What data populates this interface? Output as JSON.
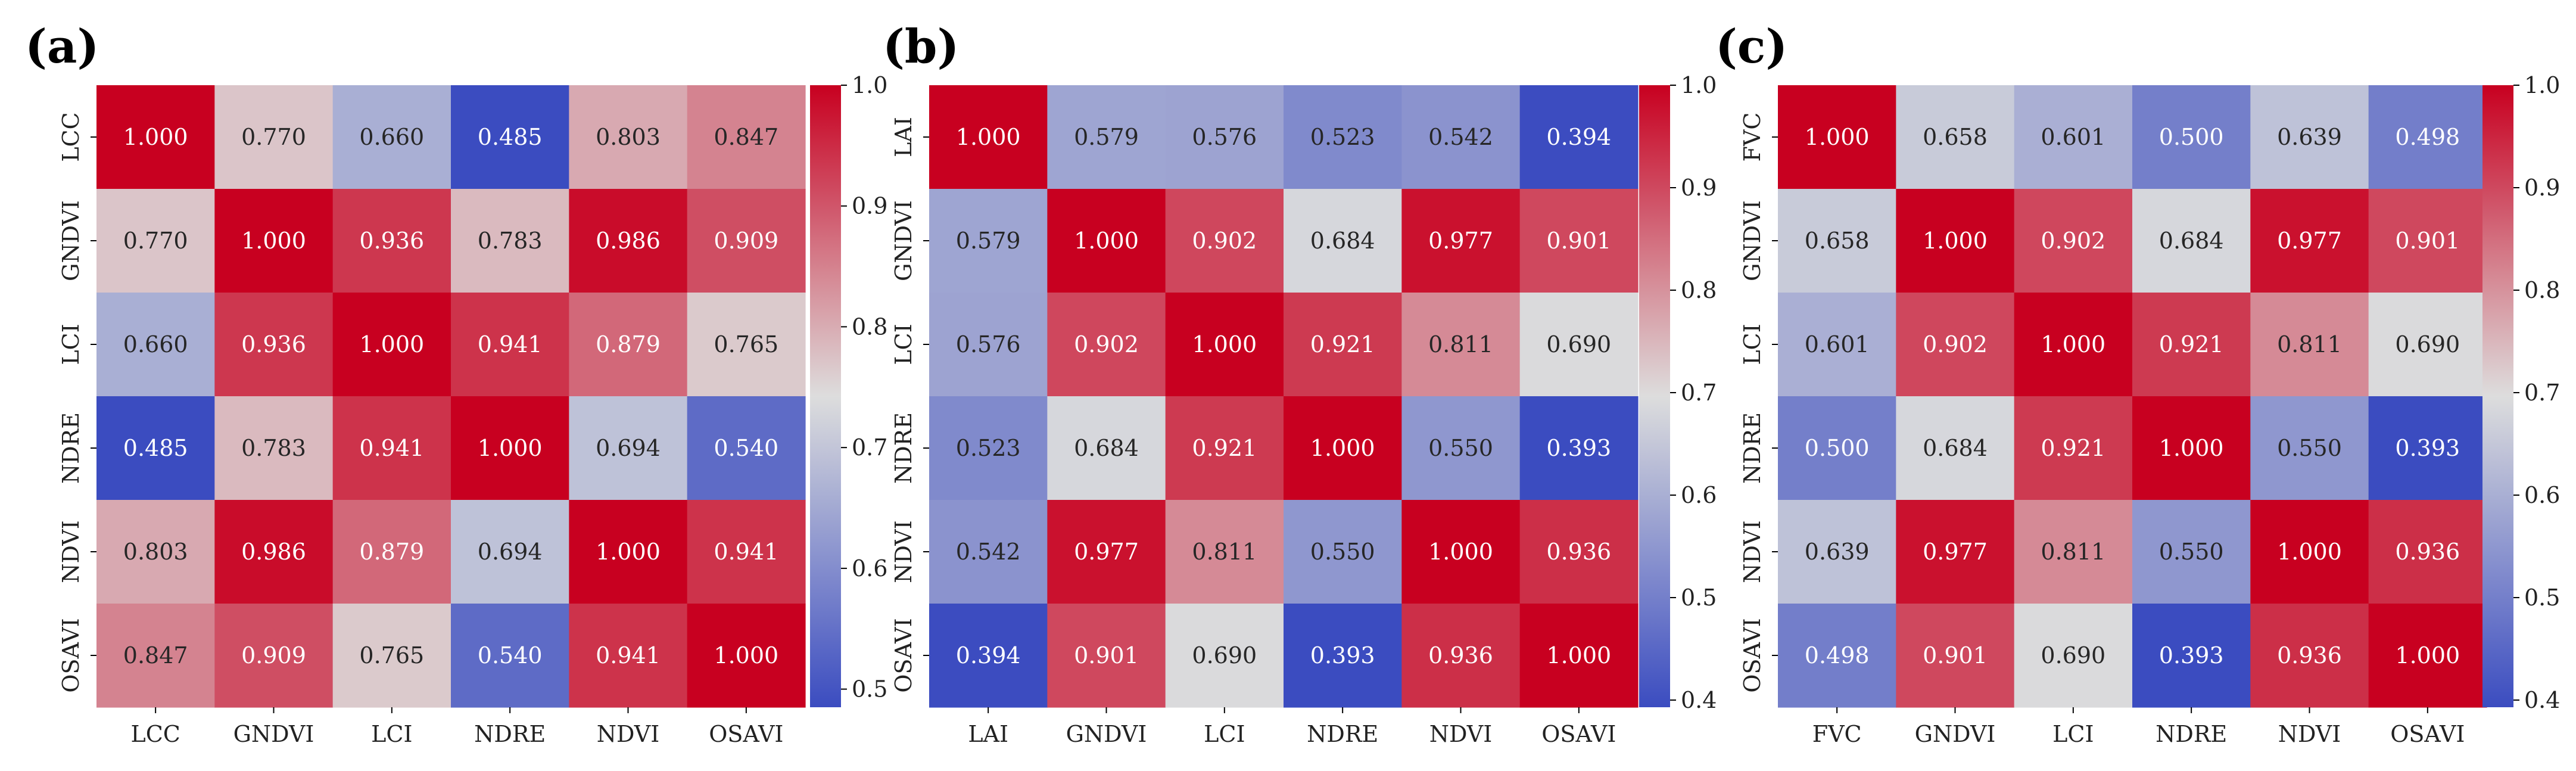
{
  "figure": {
    "colormap": {
      "low": "#3b4cc0",
      "mid": "#dddddd",
      "high": "#c80020"
    }
  },
  "chart_data": [
    {
      "type": "heatmap",
      "panel_label": "(a)",
      "rows": [
        "LCC",
        "GNDVI",
        "LCI",
        "NDRE",
        "NDVI",
        "OSAVI"
      ],
      "columns": [
        "LCC",
        "GNDVI",
        "LCI",
        "NDRE",
        "NDVI",
        "OSAVI"
      ],
      "values": [
        [
          1.0,
          0.77,
          0.66,
          0.485,
          0.803,
          0.847
        ],
        [
          0.77,
          1.0,
          0.936,
          0.783,
          0.986,
          0.909
        ],
        [
          0.66,
          0.936,
          1.0,
          0.941,
          0.879,
          0.765
        ],
        [
          0.485,
          0.783,
          0.941,
          1.0,
          0.694,
          0.54
        ],
        [
          0.803,
          0.986,
          0.879,
          0.694,
          1.0,
          0.941
        ],
        [
          0.847,
          0.909,
          0.765,
          0.54,
          0.941,
          1.0
        ]
      ],
      "value_format": "3 decimals",
      "colorbar_range": [
        0.485,
        1.0
      ],
      "colorbar_ticks": [
        "0.5",
        "0.6",
        "0.7",
        "0.8",
        "0.9",
        "1.0"
      ]
    },
    {
      "type": "heatmap",
      "panel_label": "(b)",
      "rows": [
        "LAI",
        "GNDVI",
        "LCI",
        "NDRE",
        "NDVI",
        "OSAVI"
      ],
      "columns": [
        "LAI",
        "GNDVI",
        "LCI",
        "NDRE",
        "NDVI",
        "OSAVI"
      ],
      "values": [
        [
          1.0,
          0.579,
          0.576,
          0.523,
          0.542,
          0.394
        ],
        [
          0.579,
          1.0,
          0.902,
          0.684,
          0.977,
          0.901
        ],
        [
          0.576,
          0.902,
          1.0,
          0.921,
          0.811,
          0.69
        ],
        [
          0.523,
          0.684,
          0.921,
          1.0,
          0.55,
          0.393
        ],
        [
          0.542,
          0.977,
          0.811,
          0.55,
          1.0,
          0.936
        ],
        [
          0.394,
          0.901,
          0.69,
          0.393,
          0.936,
          1.0
        ]
      ],
      "value_format": "3 decimals",
      "colorbar_range": [
        0.393,
        1.0
      ],
      "colorbar_ticks": [
        "0.4",
        "0.5",
        "0.6",
        "0.7",
        "0.8",
        "0.9",
        "1.0"
      ]
    },
    {
      "type": "heatmap",
      "panel_label": "(c)",
      "rows": [
        "FVC",
        "GNDVI",
        "LCI",
        "NDRE",
        "NDVI",
        "OSAVI"
      ],
      "columns": [
        "FVC",
        "GNDVI",
        "LCI",
        "NDRE",
        "NDVI",
        "OSAVI"
      ],
      "values": [
        [
          1.0,
          0.658,
          0.601,
          0.5,
          0.639,
          0.498
        ],
        [
          0.658,
          1.0,
          0.902,
          0.684,
          0.977,
          0.901
        ],
        [
          0.601,
          0.902,
          1.0,
          0.921,
          0.811,
          0.69
        ],
        [
          0.5,
          0.684,
          0.921,
          1.0,
          0.55,
          0.393
        ],
        [
          0.639,
          0.977,
          0.811,
          0.55,
          1.0,
          0.936
        ],
        [
          0.498,
          0.901,
          0.69,
          0.393,
          0.936,
          1.0
        ]
      ],
      "value_format": "3 decimals",
      "colorbar_range": [
        0.393,
        1.0
      ],
      "colorbar_ticks": [
        "0.4",
        "0.5",
        "0.6",
        "0.7",
        "0.8",
        "0.9",
        "1.0"
      ]
    }
  ]
}
